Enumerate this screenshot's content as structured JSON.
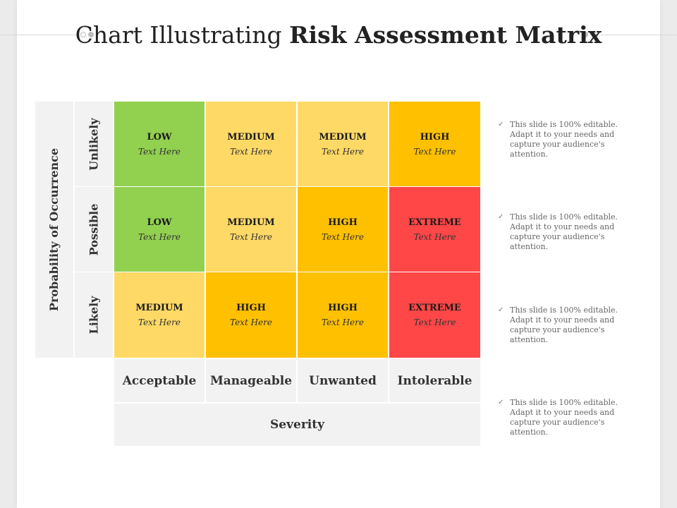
{
  "title": {
    "light": "Chart Illustrating ",
    "bold": "Risk Assessment Matrix"
  },
  "y_axis_label": "Probability of Occurrence",
  "rows": [
    {
      "label": "Unlikely",
      "cells": [
        {
          "level": "LOW",
          "text": "Text Here",
          "color": "#92d050"
        },
        {
          "level": "MEDIUM",
          "text": "Text Here",
          "color": "#ffd966"
        },
        {
          "level": "MEDIUM",
          "text": "Text Here",
          "color": "#ffd966"
        },
        {
          "level": "HIGH",
          "text": "Text Here",
          "color": "#ffc000"
        }
      ]
    },
    {
      "label": "Possible",
      "cells": [
        {
          "level": "LOW",
          "text": "Text Here",
          "color": "#92d050"
        },
        {
          "level": "MEDIUM",
          "text": "Text Here",
          "color": "#ffd966"
        },
        {
          "level": "HIGH",
          "text": "Text Here",
          "color": "#ffc000"
        },
        {
          "level": "EXTREME",
          "text": "Text Here",
          "color": "#ff4747"
        }
      ]
    },
    {
      "label": "Likely",
      "cells": [
        {
          "level": "MEDIUM",
          "text": "Text Here",
          "color": "#ffd966"
        },
        {
          "level": "HIGH",
          "text": "Text Here",
          "color": "#ffc000"
        },
        {
          "level": "HIGH",
          "text": "Text Here",
          "color": "#ffc000"
        },
        {
          "level": "EXTREME",
          "text": "Text Here",
          "color": "#ff4747"
        }
      ]
    }
  ],
  "severity_levels": [
    "Acceptable",
    "Manageable",
    "Unwanted",
    "Intolerable"
  ],
  "x_axis_label": "Severity",
  "notes": [
    "This slide is 100% editable. Adapt it to your needs and capture your audience's attention.",
    "This slide is 100% editable. Adapt it to your needs and capture your audience's attention.",
    "This slide is 100% editable. Adapt it to your needs and capture your audience's attention.",
    "This slide is 100% editable. Adapt it to your needs and capture your audience's attention."
  ]
}
